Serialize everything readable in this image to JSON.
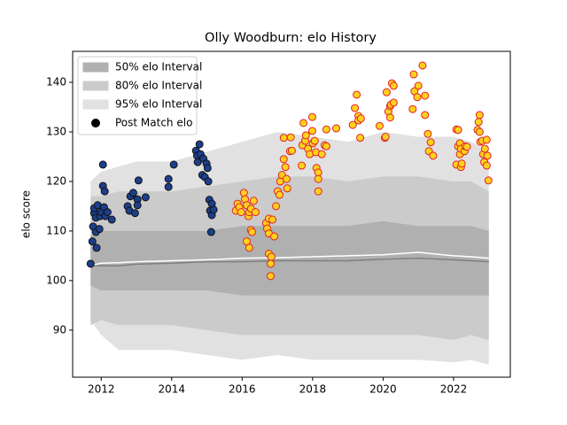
{
  "chart_data": {
    "type": "band",
    "title": "Olly Woodburn: elo History",
    "y_label": "elo score",
    "xlim": [
      2011.19,
      2023.61
    ],
    "ylim": [
      80.5,
      146.25
    ],
    "xticks": [
      2012,
      2014,
      2016,
      2018,
      2020,
      2022
    ],
    "yticks": [
      90,
      100,
      110,
      120,
      130,
      140
    ],
    "grid": false,
    "legend": "upper left",
    "x": [
      2011.7,
      2012.0,
      2012.5,
      2013,
      2014,
      2015,
      2016,
      2017,
      2018,
      2019,
      2020,
      2021,
      2022,
      2022.5,
      2023.0
    ],
    "series": [
      {
        "name": "50% elo Interval",
        "type": "band",
        "color": "#b0b0b0",
        "upper": [
          109,
          110,
          110,
          110,
          110,
          110,
          111,
          111,
          111,
          111,
          112,
          111,
          111,
          111,
          110
        ],
        "lower": [
          99,
          98,
          98,
          98,
          98,
          98,
          97,
          97,
          97,
          97,
          97,
          97,
          97,
          97,
          97
        ]
      },
      {
        "name": "80% elo Interval",
        "type": "band",
        "color": "#cbcbcb",
        "upper": [
          117,
          117,
          118,
          118,
          118,
          119,
          120,
          121,
          121,
          120,
          121,
          121,
          120,
          120,
          118
        ],
        "lower": [
          91,
          92,
          91,
          91,
          91,
          90,
          89,
          89,
          89,
          89,
          89,
          89,
          88,
          89,
          88
        ]
      },
      {
        "name": "95% elo Interval",
        "type": "band",
        "color": "#e1e1e1",
        "upper": [
          120,
          122,
          123,
          124,
          124,
          126,
          128,
          130,
          129,
          128,
          130,
          129,
          129,
          128,
          126
        ],
        "lower": [
          92,
          89,
          86,
          86,
          86,
          85,
          84,
          85,
          84,
          84,
          84,
          84,
          83.5,
          84,
          83
        ]
      },
      {
        "name": "Post Match elo",
        "type": "scatter",
        "color": "#000000",
        "groups": [
          {
            "fill": "#1c3f8c",
            "edge": "#111111",
            "x": [
              2011.7,
              2011.75,
              2011.77,
              2011.8,
              2011.8,
              2011.85,
              2011.85,
              2011.87,
              2011.9,
              2011.95,
              2011.97,
              2012.0,
              2012.05,
              2012.05,
              2012.1,
              2012.08,
              2012.12,
              2012.18,
              2012.3,
              2012.75,
              2012.83,
              2012.91,
              2012.8,
              2012.96,
              2013.03,
              2013.03,
              2013.06,
              2013.26,
              2013.91,
              2013.91,
              2014.06,
              2014.69,
              2014.72,
              2014.74,
              2014.79,
              2014.82,
              2014.87,
              2014.9,
              2014.94,
              2014.99,
              2015.02,
              2015.04,
              2015.07,
              2015.09,
              2015.14,
              2015.14,
              2015.19,
              2015.12
            ],
            "values": [
              103.4,
              107.9,
              110.9,
              113.6,
              114.6,
              112.7,
              109.8,
              106.6,
              115.2,
              110.4,
              113.0,
              113.8,
              123.4,
              119.1,
              118.0,
              114.8,
              113.0,
              113.8,
              112.3,
              115.0,
              117.0,
              117.7,
              114.1,
              113.6,
              116.4,
              115.2,
              120.2,
              116.8,
              118.9,
              120.5,
              123.4,
              126.2,
              125.2,
              123.9,
              127.5,
              125.5,
              121.3,
              124.6,
              120.9,
              123.6,
              122.7,
              120.0,
              116.3,
              114.1,
              115.5,
              113.2,
              114.3,
              109.8
            ]
          },
          {
            "fill": "#ffd21a",
            "edge": "#e0202a",
            "x": [
              2015.82,
              2015.87,
              2015.92,
              2015.97,
              2016.05,
              2016.08,
              2016.13,
              2016.18,
              2016.2,
              2016.25,
              2016.33,
              2016.38,
              2016.13,
              2016.2,
              2016.25,
              2016.28,
              2016.68,
              2016.76,
              2016.71,
              2016.76,
              2016.76,
              2016.81,
              2016.83,
              2016.81,
              2016.86,
              2016.91,
              2016.96,
              2017.01,
              2017.06,
              2017.08,
              2017.13,
              2017.18,
              2017.18,
              2017.23,
              2017.26,
              2017.28,
              2017.36,
              2017.38,
              2017.41,
              2017.69,
              2017.71,
              2017.74,
              2017.79,
              2017.81,
              2017.87,
              2017.92,
              2017.99,
              2017.99,
              2018.01,
              2018.06,
              2018.09,
              2018.11,
              2018.16,
              2018.16,
              2018.16,
              2018.26,
              2018.34,
              2018.39,
              2018.39,
              2018.67,
              2019.14,
              2019.2,
              2019.25,
              2019.3,
              2019.3,
              2019.37,
              2019.35,
              2019.9,
              2020.05,
              2020.07,
              2020.1,
              2020.15,
              2020.2,
              2020.25,
              2020.3,
              2020.22,
              2020.3,
              2020.2,
              2020.87,
              2020.89,
              2020.84,
              2020.97,
              2021.0,
              2021.12,
              2021.19,
              2021.19,
              2021.27,
              2021.3,
              2021.35,
              2021.42,
              2022.08,
              2022.13,
              2022.08,
              2022.13,
              2022.18,
              2022.18,
              2022.21,
              2022.21,
              2022.23,
              2022.31,
              2022.33,
              2022.38,
              2022.68,
              2022.74,
              2022.71,
              2022.74,
              2022.76,
              2022.81,
              2022.84,
              2022.87,
              2022.89,
              2022.94,
              2022.94,
              2022.96,
              2022.99
            ],
            "values": [
              114.1,
              115.5,
              114.8,
              113.8,
              117.7,
              116.4,
              115.2,
              113.0,
              113.8,
              114.5,
              116.1,
              113.8,
              107.9,
              106.6,
              110.2,
              109.8,
              111.6,
              112.5,
              110.5,
              109.5,
              105.4,
              103.4,
              104.8,
              100.9,
              112.3,
              108.9,
              115.0,
              118.0,
              117.3,
              120.0,
              121.3,
              124.5,
              128.8,
              122.9,
              120.5,
              118.6,
              126.1,
              128.9,
              126.2,
              123.2,
              127.3,
              131.8,
              128.2,
              129.3,
              126.6,
              125.5,
              133.0,
              130.2,
              127.7,
              128.2,
              125.9,
              122.7,
              121.8,
              120.5,
              118.0,
              125.5,
              127.3,
              127.1,
              130.5,
              130.7,
              131.4,
              134.8,
              137.5,
              133.2,
              132.3,
              132.7,
              128.8,
              131.2,
              128.8,
              129.0,
              138.0,
              134.1,
              135.2,
              139.8,
              139.3,
              135.5,
              135.9,
              132.9,
              141.6,
              138.2,
              134.6,
              137.0,
              139.3,
              143.4,
              137.3,
              133.4,
              129.6,
              126.1,
              127.9,
              125.2,
              130.5,
              130.4,
              123.4,
              127.1,
              125.5,
              127.7,
              126.6,
              122.9,
              123.6,
              126.1,
              127.1,
              127.0,
              130.4,
              133.4,
              132.0,
              130.0,
              128.0,
              128.2,
              125.5,
              123.9,
              126.6,
              128.4,
              123.2,
              125.2,
              120.2
            ]
          }
        ]
      },
      {
        "type": "line",
        "color": "#7f7f7f",
        "values": [
          103,
          103,
          103,
          103.3,
          103.5,
          103.8,
          103.8,
          104,
          104,
          104,
          104.3,
          104.5,
          104.2,
          104,
          103.8
        ]
      },
      {
        "type": "line",
        "color": "#ffffff",
        "values": [
          103,
          103.5,
          103.6,
          103.8,
          104,
          104.2,
          104.5,
          104.6,
          104.8,
          105,
          105.2,
          105.7,
          105,
          104.8,
          104.5
        ]
      }
    ]
  }
}
